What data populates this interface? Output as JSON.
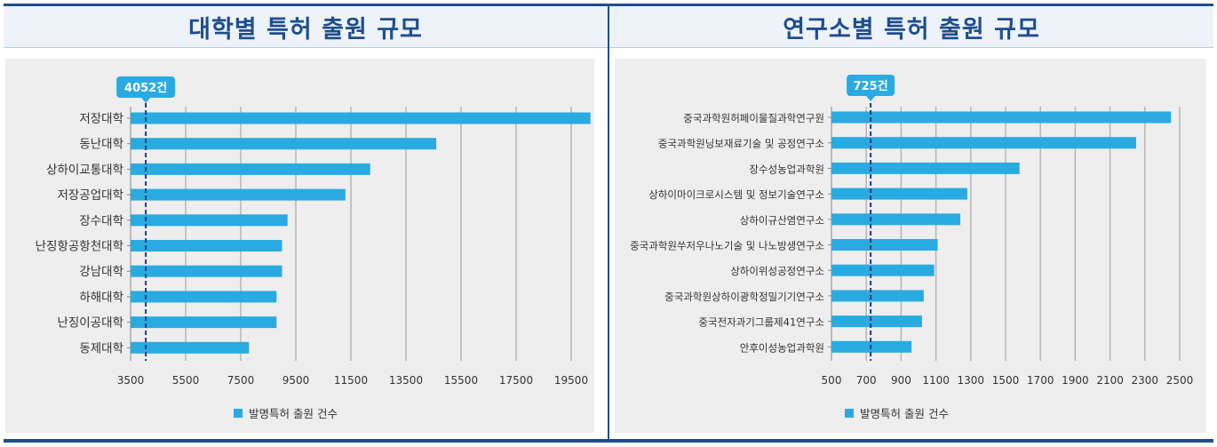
{
  "colors": {
    "accent": "#1f4e8c",
    "bar": "#29abe2",
    "refline": "#1f3d7a"
  },
  "left": {
    "title": "대학별 특허 출원 규모",
    "chart_data": {
      "type": "bar",
      "orientation": "horizontal",
      "categories": [
        "저장대학",
        "동난대학",
        "상하이교통대학",
        "저장공업대학",
        "장수대학",
        "난징항공항천대학",
        "강남대학",
        "하해대학",
        "난징이공대학",
        "동제대학"
      ],
      "series": [
        {
          "name": "발명특허 출원 건수",
          "values": [
            20200,
            14600,
            12200,
            11300,
            9200,
            9000,
            9000,
            8800,
            8800,
            7800
          ]
        }
      ],
      "xticks": [
        3500,
        5500,
        7500,
        9500,
        11500,
        13500,
        15500,
        17500,
        19500
      ],
      "xlim": [
        3500,
        21500
      ],
      "reference_line": {
        "value": 4052,
        "label": "4052건"
      },
      "legend": "bottom",
      "grid": true
    }
  },
  "right": {
    "title": "연구소별 특허 출원 규모",
    "chart_data": {
      "type": "bar",
      "orientation": "horizontal",
      "categories": [
        "중국과학원허페이물질과학연구원",
        "중국과학원닝보재료기술 및 공정연구소",
        "장수성농업과학원",
        "상하이마이크로시스템 및 정보기술연구소",
        "상하이규산염연구소",
        "중국과학원쑤저우나노기술 및 나노방생연구소",
        "상하이위성공정연구소",
        "중국과학원상하이광학정밀기기연구소",
        "중국전자과기그룹제41연구소",
        "안후이성농업과학원"
      ],
      "series": [
        {
          "name": "발명특허 출원 건수",
          "values": [
            2450,
            2250,
            1580,
            1280,
            1240,
            1110,
            1090,
            1030,
            1020,
            960
          ]
        }
      ],
      "xticks": [
        500,
        700,
        900,
        1100,
        1300,
        1500,
        1700,
        1900,
        2100,
        2300,
        2500
      ],
      "xlim": [
        500,
        2500
      ],
      "reference_line": {
        "value": 725,
        "label": "725건"
      },
      "legend": "bottom",
      "grid": true
    }
  }
}
